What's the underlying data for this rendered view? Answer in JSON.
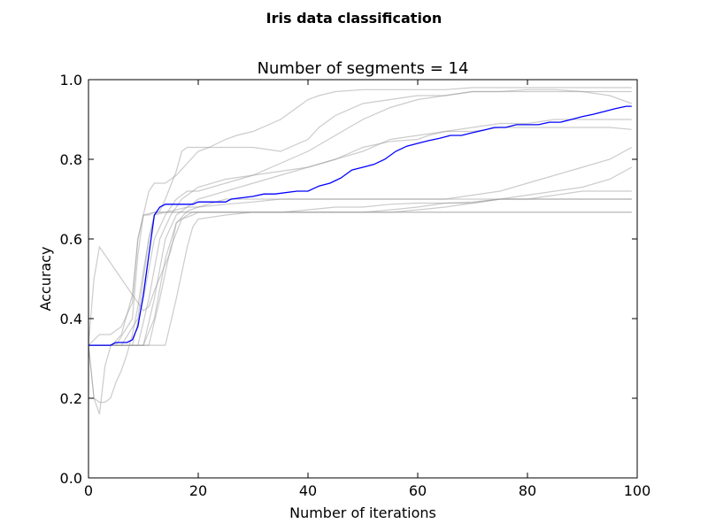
{
  "figure": {
    "suptitle": "Iris data classification"
  },
  "chart_data": {
    "type": "line",
    "title": "Number of segments = 14",
    "xlabel": "Number of iterations",
    "ylabel": "Accuracy",
    "xlim": [
      0,
      100
    ],
    "ylim": [
      0.0,
      1.0
    ],
    "xticks": [
      0,
      20,
      40,
      60,
      80,
      100
    ],
    "xtick_labels": [
      "0",
      "20",
      "40",
      "60",
      "80",
      "100"
    ],
    "yticks": [
      0.0,
      0.2,
      0.4,
      0.6,
      0.8,
      1.0
    ],
    "ytick_labels": [
      "0.0",
      "0.2",
      "0.4",
      "0.6",
      "0.8",
      "1.0"
    ],
    "grid": false,
    "legend": false,
    "mean_color": "#0000ff",
    "run_color": "#999999",
    "mean": {
      "x": [
        0,
        1,
        2,
        3,
        4,
        5,
        6,
        7,
        8,
        9,
        10,
        11,
        12,
        13,
        14,
        15,
        16,
        17,
        18,
        19,
        20,
        25,
        26,
        30,
        32,
        34,
        38,
        40,
        42,
        44,
        46,
        48,
        50,
        52,
        54,
        56,
        58,
        60,
        62,
        64,
        66,
        68,
        70,
        72,
        74,
        76,
        78,
        80,
        82,
        84,
        86,
        88,
        90,
        92,
        94,
        96,
        98,
        99
      ],
      "y": [
        0.333,
        0.333,
        0.333,
        0.333,
        0.333,
        0.34,
        0.34,
        0.34,
        0.347,
        0.38,
        0.46,
        0.56,
        0.66,
        0.68,
        0.687,
        0.687,
        0.687,
        0.687,
        0.687,
        0.687,
        0.693,
        0.693,
        0.7,
        0.707,
        0.713,
        0.713,
        0.72,
        0.72,
        0.733,
        0.74,
        0.753,
        0.773,
        0.78,
        0.787,
        0.8,
        0.82,
        0.833,
        0.84,
        0.847,
        0.853,
        0.86,
        0.86,
        0.867,
        0.873,
        0.88,
        0.88,
        0.887,
        0.887,
        0.887,
        0.893,
        0.893,
        0.9,
        0.907,
        0.913,
        0.92,
        0.927,
        0.933,
        0.933
      ]
    },
    "runs": [
      {
        "x": [
          0,
          1,
          2,
          3,
          6,
          8,
          10,
          11,
          12,
          15,
          16,
          18,
          19,
          20,
          25,
          30,
          35,
          40,
          45,
          50,
          55,
          60,
          65,
          70,
          75,
          80,
          85,
          90,
          95,
          99
        ],
        "y": [
          0.333,
          0.5,
          0.58,
          0.56,
          0.5,
          0.46,
          0.42,
          0.43,
          0.47,
          0.57,
          0.64,
          0.66,
          0.667,
          0.667,
          0.667,
          0.667,
          0.667,
          0.667,
          0.667,
          0.667,
          0.667,
          0.667,
          0.667,
          0.667,
          0.667,
          0.667,
          0.667,
          0.667,
          0.667,
          0.667
        ]
      },
      {
        "x": [
          0,
          1,
          2,
          3,
          4,
          6,
          8,
          9,
          10,
          11,
          12,
          15,
          20,
          30,
          40,
          50,
          60,
          70,
          80,
          90,
          99
        ],
        "y": [
          0.333,
          0.2,
          0.16,
          0.28,
          0.33,
          0.36,
          0.46,
          0.6,
          0.66,
          0.66,
          0.667,
          0.667,
          0.667,
          0.667,
          0.667,
          0.667,
          0.667,
          0.667,
          0.667,
          0.667,
          0.667
        ]
      },
      {
        "x": [
          0,
          1,
          2,
          3,
          4,
          5,
          6,
          7,
          8,
          9,
          10,
          11,
          12,
          14,
          16,
          18,
          20,
          25,
          30,
          35,
          40,
          45,
          50,
          60,
          70,
          75,
          80,
          85,
          90,
          95,
          99
        ],
        "y": [
          0.333,
          0.2,
          0.19,
          0.19,
          0.2,
          0.24,
          0.27,
          0.31,
          0.36,
          0.43,
          0.52,
          0.6,
          0.66,
          0.667,
          0.673,
          0.68,
          0.68,
          0.687,
          0.693,
          0.7,
          0.7,
          0.7,
          0.7,
          0.7,
          0.7,
          0.7,
          0.7,
          0.7,
          0.7,
          0.7,
          0.7
        ]
      },
      {
        "x": [
          0,
          5,
          8,
          9,
          10,
          11,
          12,
          13,
          14,
          16,
          18,
          20,
          22,
          25,
          27,
          30,
          35,
          38,
          40,
          42,
          45,
          50,
          55,
          60,
          65,
          70,
          75,
          80,
          85,
          90,
          95,
          99
        ],
        "y": [
          0.333,
          0.333,
          0.4,
          0.56,
          0.66,
          0.72,
          0.74,
          0.74,
          0.74,
          0.76,
          0.79,
          0.82,
          0.83,
          0.85,
          0.86,
          0.87,
          0.9,
          0.93,
          0.95,
          0.96,
          0.97,
          0.975,
          0.975,
          0.975,
          0.975,
          0.98,
          0.98,
          0.98,
          0.98,
          0.98,
          0.98,
          0.98
        ]
      },
      {
        "x": [
          0,
          6,
          9,
          10,
          11,
          12,
          13,
          14,
          16,
          17,
          18,
          20,
          25,
          30,
          35,
          40,
          42,
          45,
          50,
          55,
          60,
          65,
          70,
          75,
          80,
          85,
          90,
          95,
          99
        ],
        "y": [
          0.333,
          0.333,
          0.4,
          0.5,
          0.6,
          0.66,
          0.67,
          0.7,
          0.77,
          0.82,
          0.83,
          0.83,
          0.83,
          0.83,
          0.82,
          0.85,
          0.88,
          0.91,
          0.94,
          0.95,
          0.96,
          0.96,
          0.97,
          0.97,
          0.975,
          0.975,
          0.97,
          0.96,
          0.94
        ]
      },
      {
        "x": [
          0,
          8,
          10,
          12,
          14,
          16,
          18,
          20,
          25,
          30,
          35,
          40,
          45,
          50,
          55,
          60,
          65,
          70,
          75,
          80,
          85,
          90,
          95,
          99
        ],
        "y": [
          0.333,
          0.333,
          0.45,
          0.6,
          0.66,
          0.7,
          0.72,
          0.72,
          0.74,
          0.76,
          0.79,
          0.82,
          0.86,
          0.9,
          0.93,
          0.95,
          0.96,
          0.97,
          0.97,
          0.97,
          0.97,
          0.97,
          0.97,
          0.97
        ]
      },
      {
        "x": [
          0,
          9,
          11,
          13,
          15,
          17,
          19,
          20,
          25,
          30,
          35,
          40,
          45,
          50,
          55,
          60,
          62,
          65,
          70,
          75,
          80,
          85,
          90,
          95,
          99
        ],
        "y": [
          0.333,
          0.333,
          0.45,
          0.6,
          0.66,
          0.7,
          0.72,
          0.73,
          0.75,
          0.76,
          0.77,
          0.78,
          0.8,
          0.83,
          0.845,
          0.85,
          0.86,
          0.87,
          0.88,
          0.89,
          0.89,
          0.9,
          0.9,
          0.9,
          0.9
        ]
      },
      {
        "x": [
          0,
          10,
          12,
          14,
          16,
          18,
          20,
          25,
          30,
          35,
          40,
          45,
          50,
          55,
          60,
          65,
          70,
          75,
          80,
          85,
          90,
          95,
          99
        ],
        "y": [
          0.333,
          0.333,
          0.45,
          0.6,
          0.66,
          0.68,
          0.7,
          0.72,
          0.74,
          0.76,
          0.78,
          0.8,
          0.82,
          0.85,
          0.86,
          0.87,
          0.87,
          0.88,
          0.88,
          0.88,
          0.88,
          0.88,
          0.875
        ]
      },
      {
        "x": [
          0,
          10,
          12,
          14,
          16,
          18,
          20,
          25,
          30,
          35,
          40,
          45,
          50,
          55,
          60,
          65,
          70,
          75,
          80,
          85,
          90,
          95,
          99
        ],
        "y": [
          0.333,
          0.333,
          0.4,
          0.55,
          0.64,
          0.67,
          0.68,
          0.7,
          0.7,
          0.7,
          0.7,
          0.7,
          0.7,
          0.7,
          0.7,
          0.7,
          0.71,
          0.72,
          0.74,
          0.76,
          0.78,
          0.8,
          0.83
        ]
      },
      {
        "x": [
          0,
          11,
          13,
          15,
          17,
          19,
          20,
          25,
          30,
          35,
          40,
          45,
          50,
          55,
          60,
          65,
          70,
          75,
          80,
          85,
          90,
          95,
          99
        ],
        "y": [
          0.333,
          0.333,
          0.45,
          0.58,
          0.65,
          0.66,
          0.667,
          0.667,
          0.667,
          0.667,
          0.667,
          0.667,
          0.667,
          0.673,
          0.68,
          0.69,
          0.69,
          0.7,
          0.7,
          0.71,
          0.72,
          0.72,
          0.72
        ]
      },
      {
        "x": [
          0,
          14,
          16,
          18,
          19,
          20,
          25,
          30,
          35,
          40,
          45,
          50,
          55,
          60,
          65,
          70,
          75,
          80,
          85,
          90,
          95,
          99
        ],
        "y": [
          0.333,
          0.333,
          0.45,
          0.58,
          0.63,
          0.65,
          0.66,
          0.667,
          0.667,
          0.667,
          0.667,
          0.667,
          0.667,
          0.673,
          0.68,
          0.69,
          0.7,
          0.71,
          0.72,
          0.73,
          0.75,
          0.78
        ]
      },
      {
        "x": [
          0,
          2,
          4,
          6,
          8,
          9,
          10,
          12,
          14,
          16,
          18,
          20,
          25,
          30,
          35,
          40,
          45,
          50,
          55,
          60,
          65,
          70,
          75,
          80,
          85,
          90,
          95,
          99
        ],
        "y": [
          0.333,
          0.36,
          0.36,
          0.38,
          0.44,
          0.6,
          0.66,
          0.667,
          0.667,
          0.667,
          0.667,
          0.667,
          0.667,
          0.667,
          0.667,
          0.673,
          0.68,
          0.68,
          0.687,
          0.69,
          0.69,
          0.693,
          0.7,
          0.7,
          0.7,
          0.7,
          0.7,
          0.7
        ]
      }
    ]
  }
}
